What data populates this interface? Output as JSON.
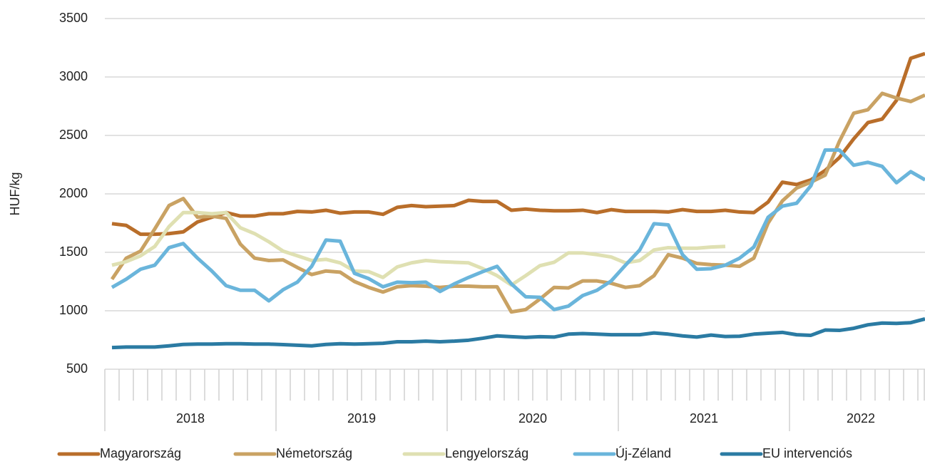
{
  "chart_data": {
    "type": "line",
    "y_label": "HUF/kg",
    "groups": [
      "2018",
      "2019",
      "2020",
      "2021",
      "2022"
    ],
    "categories": [
      null,
      null,
      null,
      null,
      null,
      null,
      null,
      null,
      null,
      null,
      null,
      null,
      null,
      null,
      null,
      null,
      null,
      null,
      null,
      null,
      null,
      null,
      null,
      null,
      null,
      null,
      null,
      null,
      null,
      null,
      null,
      null,
      null,
      null,
      null,
      null,
      null,
      null,
      null,
      null,
      null,
      null,
      null,
      null,
      null,
      null,
      null,
      null,
      null,
      null,
      null,
      null,
      null,
      null,
      null,
      null,
      null,
      null
    ],
    "ylim": [
      500,
      3500
    ],
    "yticks": [
      500,
      1000,
      1500,
      2000,
      2500,
      3000,
      3500
    ],
    "grid": true,
    "legend": "bottom",
    "series": [
      {
        "name": "Magyarország",
        "color": "#b96e2a",
        "values": [
          1745,
          1730,
          1655,
          1655,
          1660,
          1675,
          1760,
          1800,
          1840,
          1810,
          1810,
          1830,
          1830,
          1850,
          1845,
          1860,
          1835,
          1845,
          1845,
          1825,
          1885,
          1900,
          1890,
          1895,
          1900,
          1945,
          1935,
          1935,
          1860,
          1870,
          1860,
          1855,
          1855,
          1860,
          1840,
          1865,
          1850,
          1850,
          1850,
          1845,
          1865,
          1850,
          1850,
          1860,
          1845,
          1840,
          1930,
          2100,
          2080,
          2120,
          2200,
          2310,
          2470,
          2610,
          2640,
          2800,
          3160,
          3200
        ]
      },
      {
        "name": "Németország",
        "color": "#c9a263",
        "values": [
          1270,
          1450,
          1510,
          1700,
          1900,
          1960,
          1800,
          1810,
          1790,
          1570,
          1450,
          1430,
          1435,
          1370,
          1310,
          1340,
          1330,
          1250,
          1200,
          1160,
          1205,
          1215,
          1210,
          1200,
          1210,
          1210,
          1205,
          1205,
          990,
          1010,
          1100,
          1200,
          1195,
          1255,
          1255,
          1235,
          1200,
          1215,
          1300,
          1480,
          1450,
          1405,
          1395,
          1390,
          1380,
          1450,
          1750,
          1940,
          2050,
          2100,
          2160,
          2450,
          2690,
          2720,
          2860,
          2820,
          2790,
          2845
        ]
      },
      {
        "name": "Lengyelország",
        "color": "#dfe0b2",
        "values": [
          1390,
          1420,
          1470,
          1550,
          1720,
          1840,
          1840,
          1830,
          1840,
          1710,
          1660,
          1590,
          1510,
          1470,
          1430,
          1440,
          1410,
          1340,
          1335,
          1285,
          1375,
          1410,
          1430,
          1420,
          1415,
          1410,
          1360,
          1300,
          1220,
          1300,
          1385,
          1415,
          1495,
          1495,
          1480,
          1460,
          1410,
          1430,
          1520,
          1540,
          1535,
          1535,
          1545,
          1550,
          null,
          null,
          null,
          null,
          null,
          null,
          null,
          null,
          null,
          null,
          null,
          null,
          null,
          null
        ]
      },
      {
        "name": "Új-Zéland",
        "color": "#6ab5db",
        "values": [
          1200,
          1270,
          1355,
          1390,
          1540,
          1575,
          1450,
          1340,
          1215,
          1175,
          1175,
          1085,
          1180,
          1245,
          1380,
          1605,
          1595,
          1320,
          1275,
          1205,
          1245,
          1240,
          1245,
          1165,
          1230,
          1285,
          1335,
          1380,
          1230,
          1120,
          1115,
          1010,
          1040,
          1130,
          1175,
          1255,
          1390,
          1520,
          1745,
          1735,
          1480,
          1355,
          1360,
          1390,
          1450,
          1545,
          1800,
          1895,
          1920,
          2070,
          2375,
          2375,
          2245,
          2270,
          2235,
          2095,
          2190,
          2120
        ]
      },
      {
        "name": "EU intervenciós",
        "color": "#2b7ba3",
        "values": [
          685,
          690,
          690,
          690,
          700,
          712,
          715,
          715,
          718,
          718,
          715,
          715,
          710,
          705,
          700,
          712,
          718,
          715,
          718,
          722,
          735,
          735,
          740,
          735,
          740,
          748,
          765,
          785,
          778,
          772,
          778,
          775,
          800,
          805,
          800,
          795,
          795,
          795,
          810,
          800,
          785,
          775,
          792,
          780,
          782,
          800,
          808,
          815,
          795,
          790,
          835,
          832,
          850,
          880,
          895,
          892,
          898,
          930
        ]
      }
    ]
  }
}
